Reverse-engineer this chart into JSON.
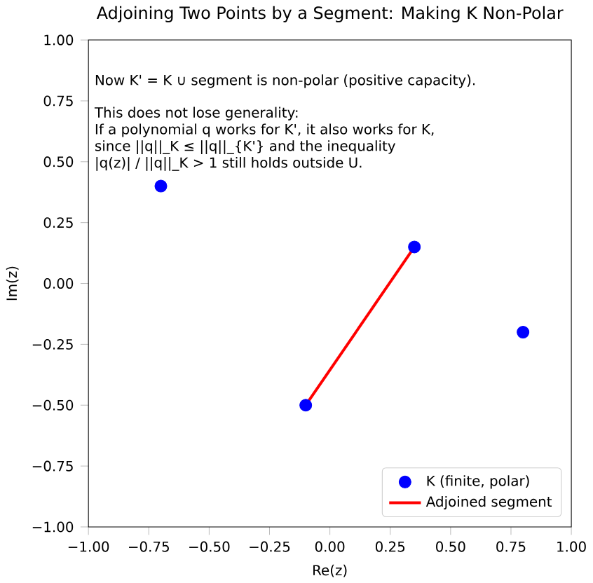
{
  "chart_data": {
    "type": "scatter",
    "title": "Adjoining Two Points by a Segment: Making K Non-Polar",
    "xlabel": "Re(z)",
    "ylabel": "Im(z)",
    "xlim": [
      -1,
      1
    ],
    "ylim": [
      -1,
      1
    ],
    "xticks": [
      {
        "value": -1,
        "label": "−1.00"
      },
      {
        "value": -0.75,
        "label": "−0.75"
      },
      {
        "value": -0.5,
        "label": "−0.50"
      },
      {
        "value": -0.25,
        "label": "−0.25"
      },
      {
        "value": 0,
        "label": "0.00"
      },
      {
        "value": 0.25,
        "label": "0.25"
      },
      {
        "value": 0.5,
        "label": "0.50"
      },
      {
        "value": 0.75,
        "label": "0.75"
      },
      {
        "value": 1,
        "label": "1.00"
      }
    ],
    "yticks": [
      {
        "value": -1,
        "label": "−1.00"
      },
      {
        "value": -0.75,
        "label": "−0.75"
      },
      {
        "value": -0.5,
        "label": "−0.50"
      },
      {
        "value": -0.25,
        "label": "−0.25"
      },
      {
        "value": 0,
        "label": "0.00"
      },
      {
        "value": 0.25,
        "label": "0.25"
      },
      {
        "value": 0.5,
        "label": "0.50"
      },
      {
        "value": 0.75,
        "label": "0.75"
      },
      {
        "value": 1,
        "label": "1.00"
      }
    ],
    "annotations": [
      "Now K' = K ∪ segment is non-polar (positive capacity).",
      "This does not lose generality:",
      "If a polynomial q works for K', it also works for K,",
      "since ||q||_K ≤ ||q||_{K'} and the inequality",
      "|q(z)| / ||q||_K > 1 still holds outside U."
    ],
    "legend": "bottom right",
    "series": [
      {
        "name": "K (finite, polar)",
        "color": "#0000ff",
        "marker": "circle",
        "x": [
          -0.7,
          0.35,
          -0.1,
          0.8
        ],
        "values": [
          0.4,
          0.15,
          -0.5,
          -0.2
        ]
      },
      {
        "name": "Adjoined segment",
        "type": "line",
        "color": "#ff0000",
        "marker": "none",
        "line_style": "solid",
        "x": [
          -0.1,
          0.35
        ],
        "values": [
          -0.5,
          0.15
        ]
      }
    ]
  }
}
